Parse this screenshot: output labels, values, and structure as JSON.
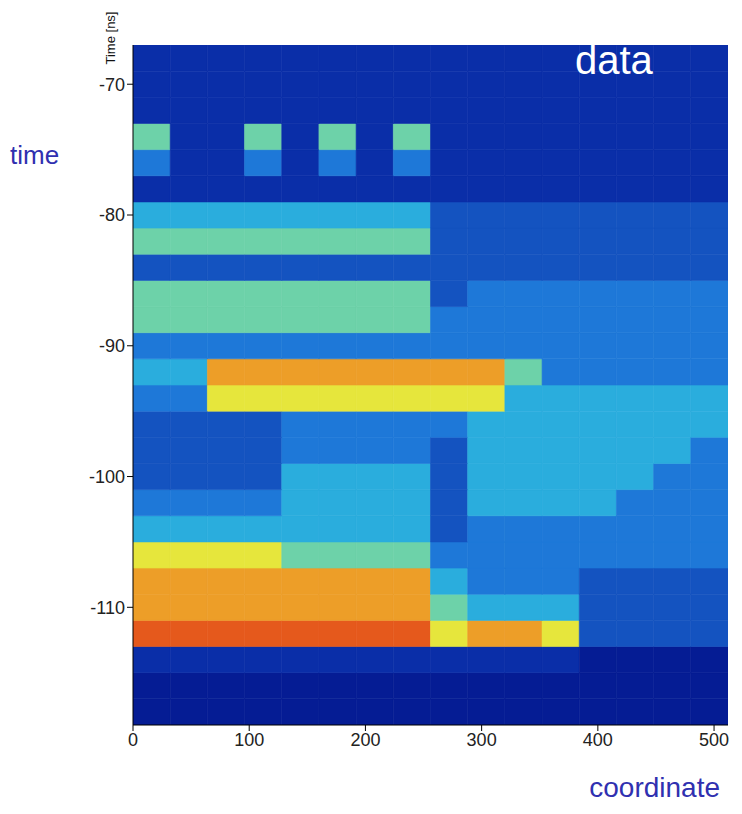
{
  "chart_data": {
    "type": "heatmap",
    "y_label": "Time [ns]",
    "annotations": [
      "data",
      "time",
      "coordinate"
    ],
    "xlim": [
      0,
      512
    ],
    "xticks": [
      0,
      100,
      200,
      300,
      400,
      500
    ],
    "ylim": [
      -119,
      -67
    ],
    "yticks": [
      -110,
      -100,
      -90,
      -80,
      -70
    ],
    "grid": false,
    "x_bins": [
      0,
      32,
      64,
      96,
      128,
      160,
      192,
      224,
      256,
      288,
      320,
      352,
      384,
      416,
      448,
      480,
      512
    ],
    "y_bins": [
      -119,
      -117,
      -115,
      -113,
      -111,
      -109,
      -107,
      -105,
      -103,
      -101,
      -99,
      -97,
      -95,
      -93,
      -91,
      -89,
      -87,
      -85,
      -83,
      -81,
      -79,
      -77,
      -75,
      -73,
      -71,
      -69,
      -67
    ],
    "zlim": [
      0,
      10
    ],
    "cells": [
      [
        1,
        1,
        1,
        1,
        1,
        1,
        1,
        1,
        1,
        1,
        1,
        1,
        1,
        1,
        1,
        1
      ],
      [
        1,
        1,
        1,
        1,
        1,
        1,
        1,
        1,
        1,
        1,
        1,
        1,
        1,
        1,
        1,
        1
      ],
      [
        2,
        2,
        2,
        2,
        2,
        2,
        2,
        2,
        2,
        2,
        2,
        2,
        1,
        1,
        1,
        1
      ],
      [
        9,
        9,
        9,
        9,
        9,
        9,
        9,
        9,
        7,
        8,
        8,
        7,
        3,
        3,
        3,
        3
      ],
      [
        8,
        8,
        8,
        8,
        8,
        8,
        8,
        8,
        6,
        5,
        5,
        5,
        3,
        3,
        3,
        3
      ],
      [
        8,
        8,
        8,
        8,
        8,
        8,
        8,
        8,
        5,
        4,
        4,
        4,
        3,
        3,
        3,
        3
      ],
      [
        7,
        7,
        7,
        7,
        6,
        6,
        6,
        6,
        4,
        4,
        4,
        4,
        4,
        4,
        4,
        4
      ],
      [
        5,
        5,
        5,
        5,
        5,
        5,
        5,
        5,
        3,
        4,
        4,
        4,
        4,
        4,
        4,
        4
      ],
      [
        4,
        4,
        4,
        4,
        5,
        5,
        5,
        5,
        3,
        5,
        5,
        5,
        5,
        4,
        4,
        4
      ],
      [
        3,
        3,
        3,
        3,
        5,
        5,
        5,
        5,
        3,
        5,
        5,
        5,
        5,
        5,
        4,
        4
      ],
      [
        3,
        3,
        3,
        3,
        4,
        4,
        4,
        4,
        3,
        5,
        5,
        5,
        5,
        5,
        5,
        4
      ],
      [
        3,
        3,
        3,
        3,
        4,
        4,
        4,
        4,
        4,
        5,
        5,
        5,
        5,
        5,
        5,
        5
      ],
      [
        4,
        4,
        7,
        7,
        7,
        7,
        7,
        7,
        7,
        7,
        5,
        5,
        5,
        5,
        5,
        5
      ],
      [
        5,
        5,
        8,
        8,
        8,
        8,
        8,
        8,
        8,
        8,
        6,
        4,
        4,
        4,
        4,
        4
      ],
      [
        4,
        4,
        4,
        4,
        4,
        4,
        4,
        4,
        4,
        4,
        4,
        4,
        4,
        4,
        4,
        4
      ],
      [
        6,
        6,
        6,
        6,
        6,
        6,
        6,
        6,
        4,
        4,
        4,
        4,
        4,
        4,
        4,
        4
      ],
      [
        6,
        6,
        6,
        6,
        6,
        6,
        6,
        6,
        3,
        4,
        4,
        4,
        4,
        4,
        4,
        4
      ],
      [
        3,
        3,
        3,
        3,
        3,
        3,
        3,
        3,
        3,
        3,
        3,
        3,
        3,
        3,
        3,
        3
      ],
      [
        6,
        6,
        6,
        6,
        6,
        6,
        6,
        6,
        3,
        3,
        3,
        3,
        3,
        3,
        3,
        3
      ],
      [
        5,
        5,
        5,
        5,
        5,
        5,
        5,
        5,
        3,
        3,
        3,
        3,
        3,
        3,
        3,
        3
      ],
      [
        2,
        2,
        2,
        2,
        2,
        2,
        2,
        2,
        2,
        2,
        2,
        2,
        2,
        2,
        2,
        2
      ],
      [
        4,
        2,
        2,
        4,
        2,
        4,
        2,
        4,
        2,
        2,
        2,
        2,
        2,
        2,
        2,
        2
      ],
      [
        6,
        2,
        2,
        6,
        2,
        6,
        2,
        6,
        2,
        2,
        2,
        2,
        2,
        2,
        2,
        2
      ],
      [
        2,
        2,
        2,
        2,
        2,
        2,
        2,
        2,
        2,
        2,
        2,
        2,
        2,
        2,
        2,
        2
      ],
      [
        2,
        2,
        2,
        2,
        2,
        2,
        2,
        2,
        2,
        2,
        2,
        2,
        2,
        2,
        2,
        2
      ],
      [
        2,
        2,
        2,
        2,
        2,
        2,
        2,
        2,
        2,
        2,
        2,
        2,
        2,
        2,
        2,
        2
      ]
    ]
  }
}
